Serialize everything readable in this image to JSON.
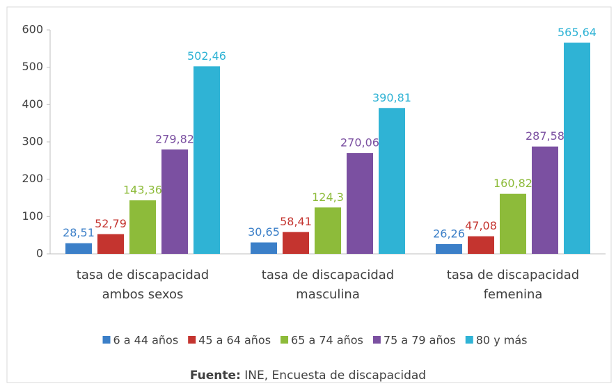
{
  "chart_data": {
    "type": "bar",
    "categories": [
      "tasa de discapacidad ambos sexos",
      "tasa de discapacidad masculina",
      "tasa de discapacidad femenina"
    ],
    "series": [
      {
        "name": "6 a 44 años",
        "color": "#3b7fc8",
        "values": [
          28.51,
          30.65,
          26.26
        ],
        "value_labels": [
          "28,51",
          "30,65",
          "26,26"
        ]
      },
      {
        "name": "45 a 64 años",
        "color": "#c4342f",
        "values": [
          52.79,
          58.41,
          47.08
        ],
        "value_labels": [
          "52,79",
          "58,41",
          "47,08"
        ]
      },
      {
        "name": "65 a 74 años",
        "color": "#8dbb3a",
        "values": [
          143.36,
          124.3,
          160.82
        ],
        "value_labels": [
          "143,36",
          "124,3",
          "160,82"
        ]
      },
      {
        "name": "75 a 79 años",
        "color": "#7b50a1",
        "values": [
          279.82,
          270.06,
          287.58
        ],
        "value_labels": [
          "279,82",
          "270,06",
          "287,58"
        ]
      },
      {
        "name": "80 y más",
        "color": "#2fb3d5",
        "values": [
          502.46,
          390.81,
          565.64
        ],
        "value_labels": [
          "502,46",
          "390,81",
          "565,64"
        ]
      }
    ],
    "ylim": [
      0,
      600
    ],
    "yticks": [
      0,
      100,
      200,
      300,
      400,
      500,
      600
    ],
    "grid": false,
    "legend": "bottom",
    "source_label": "Fuente:",
    "source": "INE, Encuesta de discapacidad"
  }
}
